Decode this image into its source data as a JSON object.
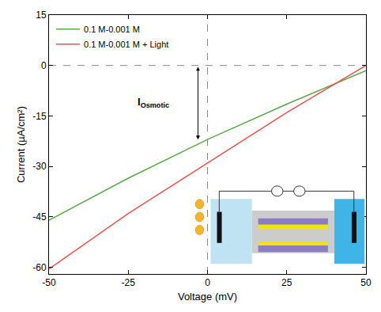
{
  "chart_data": {
    "type": "line",
    "x_label": "Voltage (mV)",
    "y_label": "Current (µA/cm²)",
    "x": [
      -50,
      -25,
      0,
      25,
      50
    ],
    "series": [
      {
        "name": "0.1 M-0.001 M",
        "color": "#5aab46",
        "line_style": "solid",
        "values": [
          -46,
          -33.5,
          -22,
          -11.5,
          -1.5
        ]
      },
      {
        "name": "0.1 M-0.001 M + Light",
        "color": "#f0504a",
        "line_style": "solid",
        "values": [
          -60.5,
          -44,
          -29,
          -14,
          0
        ]
      }
    ],
    "xlim": [
      -50,
      50
    ],
    "xticks": [
      -50,
      -25,
      0,
      25,
      50
    ],
    "ylim": [
      -62,
      15
    ],
    "yticks": [
      15,
      0,
      -15,
      -30,
      -45,
      -60
    ],
    "reference_lines": {
      "x": 0,
      "y": 0
    },
    "annotations": [
      {
        "text": "I",
        "subscript": "Osmotic",
        "x": -17,
        "y": -11,
        "arrow_x": -3,
        "arrow_y0": 0,
        "arrow_y1": -22
      }
    ],
    "legend": "upper left",
    "grid": false
  }
}
